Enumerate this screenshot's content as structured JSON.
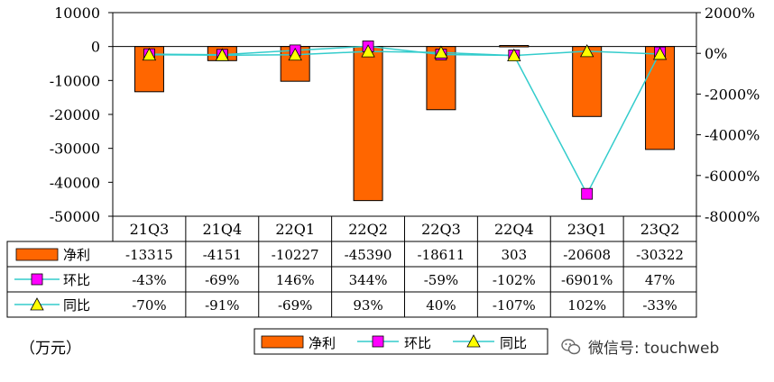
{
  "chart_data": {
    "type": "bar+line",
    "categories": [
      "21Q3",
      "21Q4",
      "22Q1",
      "22Q2",
      "22Q3",
      "22Q4",
      "23Q1",
      "23Q2"
    ],
    "left_axis": {
      "min": -50000,
      "max": 10000,
      "step": 10000,
      "ticks": [
        "10000",
        "0",
        "-10000",
        "-20000",
        "-30000",
        "-40000",
        "-50000"
      ]
    },
    "right_axis": {
      "min": -8000,
      "max": 2000,
      "step": 2000,
      "ticks": [
        "2000%",
        "0%",
        "-2000%",
        "-4000%",
        "-6000%",
        "-8000%"
      ]
    },
    "series": [
      {
        "name": "净利",
        "kind": "bar",
        "axis": "left",
        "color": "#FF6600",
        "values": [
          -13315,
          -4151,
          -10227,
          -45390,
          -18611,
          303,
          -20608,
          -30322
        ],
        "labels": [
          "-13315",
          "-4151",
          "-10227",
          "-45390",
          "-18611",
          "303",
          "-20608",
          "-30322"
        ]
      },
      {
        "name": "环比",
        "kind": "line",
        "axis": "right",
        "color": "#33CCCC",
        "marker": "square",
        "marker_color": "#FF00FF",
        "values": [
          -43,
          -69,
          146,
          344,
          -59,
          -102,
          -6901,
          47
        ],
        "labels": [
          "-43%",
          "-69%",
          "146%",
          "344%",
          "-59%",
          "-102%",
          "-6901%",
          "47%"
        ]
      },
      {
        "name": "同比",
        "kind": "line",
        "axis": "right",
        "color": "#33CCCC",
        "marker": "triangle",
        "marker_color": "#FFFF00",
        "values": [
          -70,
          -91,
          -69,
          93,
          40,
          -107,
          102,
          -33
        ],
        "labels": [
          "-70%",
          "-91%",
          "-69%",
          "93%",
          "40%",
          "-107%",
          "102%",
          "-33%"
        ]
      }
    ],
    "legend": {
      "placement": "bottom-center",
      "items": [
        "净利",
        "环比",
        "同比"
      ]
    },
    "grid": false
  },
  "unit_label": "（万元）",
  "watermark": "微信号: touchweb"
}
